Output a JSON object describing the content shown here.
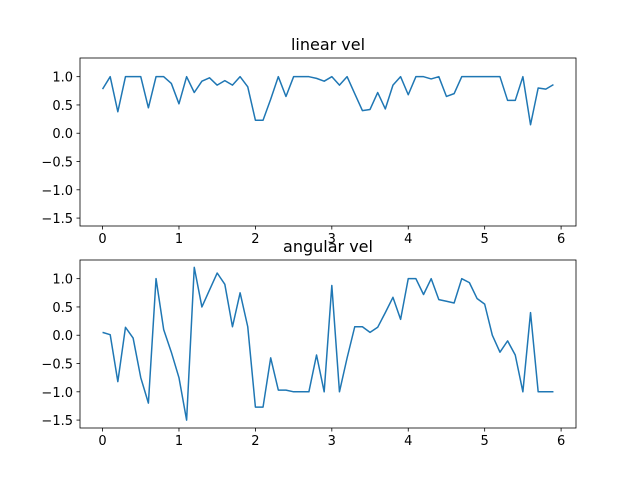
{
  "chart_data": [
    {
      "type": "line",
      "title": "linear vel",
      "x": [
        0,
        0.1,
        0.2,
        0.3,
        0.4,
        0.5,
        0.6,
        0.7,
        0.8,
        0.9,
        1,
        1.1,
        1.2,
        1.3,
        1.4,
        1.5,
        1.6,
        1.7,
        1.8,
        1.9,
        2,
        2.1,
        2.2,
        2.3,
        2.4,
        2.5,
        2.6,
        2.7,
        2.8,
        2.9,
        3,
        3.1,
        3.2,
        3.3,
        3.4,
        3.5,
        3.6,
        3.7,
        3.8,
        3.9,
        4,
        4.1,
        4.2,
        4.3,
        4.4,
        4.5,
        4.6,
        4.7,
        4.8,
        4.9,
        5,
        5.1,
        5.2,
        5.3,
        5.4,
        5.5,
        5.6,
        5.7,
        5.8,
        5.9
      ],
      "series": [
        {
          "color": "#1f77b4",
          "values": [
            0.78,
            1.0,
            0.38,
            1.0,
            1.0,
            1.0,
            0.45,
            1.0,
            1.0,
            0.88,
            0.52,
            1.0,
            0.72,
            0.92,
            0.98,
            0.85,
            0.93,
            0.85,
            1.0,
            0.82,
            0.23,
            0.23,
            0.6,
            1.0,
            0.65,
            1.0,
            1.0,
            1.0,
            0.97,
            0.92,
            1.0,
            0.85,
            1.0,
            0.7,
            0.4,
            0.42,
            0.72,
            0.43,
            0.85,
            1.0,
            0.68,
            1.0,
            1.0,
            0.96,
            1.0,
            0.65,
            0.7,
            1.0,
            1.0,
            1.0,
            1.0,
            1.0,
            1.0,
            0.58,
            0.58,
            1.0,
            0.15,
            0.8,
            0.78,
            0.86
          ]
        }
      ],
      "xlim": [
        -0.295,
        6.195
      ],
      "ylim": [
        -1.64,
        1.33
      ],
      "xticks": [
        0,
        1,
        2,
        3,
        4,
        5,
        6
      ],
      "yticks": [
        {
          "value": -1.5,
          "label": "−1.5"
        },
        {
          "value": -1.0,
          "label": "−1.0"
        },
        {
          "value": -0.5,
          "label": "−0.5"
        },
        {
          "value": 0,
          "label": "0.0"
        },
        {
          "value": 0.5,
          "label": "0.5"
        },
        {
          "value": 1.0,
          "label": "1.0"
        }
      ]
    },
    {
      "type": "line",
      "title": "angular vel",
      "x": [
        0,
        0.1,
        0.2,
        0.3,
        0.4,
        0.5,
        0.6,
        0.7,
        0.8,
        0.9,
        1,
        1.1,
        1.2,
        1.3,
        1.4,
        1.5,
        1.6,
        1.7,
        1.8,
        1.9,
        2,
        2.1,
        2.2,
        2.3,
        2.4,
        2.5,
        2.6,
        2.7,
        2.8,
        2.9,
        3,
        3.1,
        3.2,
        3.3,
        3.4,
        3.5,
        3.6,
        3.7,
        3.8,
        3.9,
        4,
        4.1,
        4.2,
        4.3,
        4.4,
        4.5,
        4.6,
        4.7,
        4.8,
        4.9,
        5,
        5.1,
        5.2,
        5.3,
        5.4,
        5.5,
        5.6,
        5.7,
        5.8,
        5.9
      ],
      "series": [
        {
          "color": "#1f77b4",
          "values": [
            0.05,
            0.01,
            -0.82,
            0.14,
            -0.05,
            -0.75,
            -1.2,
            1.0,
            0.1,
            -0.3,
            -0.75,
            -1.5,
            1.2,
            0.5,
            0.8,
            1.1,
            0.9,
            0.15,
            0.75,
            0.15,
            -1.27,
            -1.27,
            -0.4,
            -0.97,
            -0.97,
            -1.0,
            -1.0,
            -1.0,
            -0.35,
            -1.0,
            0.88,
            -1.0,
            -0.4,
            0.15,
            0.15,
            0.05,
            0.14,
            0.4,
            0.67,
            0.28,
            1.0,
            1.0,
            0.72,
            1.0,
            0.63,
            0.6,
            0.57,
            1.0,
            0.93,
            0.65,
            0.55,
            0.0,
            -0.3,
            -0.1,
            -0.35,
            -1.0,
            0.4,
            -1.0,
            -1.0,
            -1.0
          ]
        }
      ],
      "xlim": [
        -0.295,
        6.195
      ],
      "ylim": [
        -1.64,
        1.33
      ],
      "xticks": [
        0,
        1,
        2,
        3,
        4,
        5,
        6
      ],
      "yticks": [
        {
          "value": -1.5,
          "label": "−1.5"
        },
        {
          "value": -1.0,
          "label": "−1.0"
        },
        {
          "value": -0.5,
          "label": "−0.5"
        },
        {
          "value": 0,
          "label": "0.0"
        },
        {
          "value": 0.5,
          "label": "0.5"
        },
        {
          "value": 1.0,
          "label": "1.0"
        }
      ]
    }
  ]
}
